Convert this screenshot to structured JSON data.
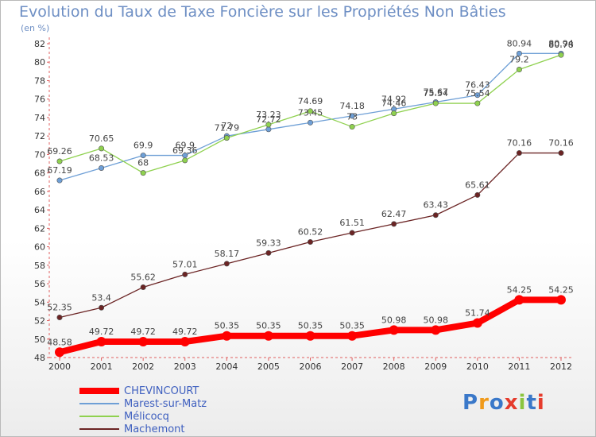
{
  "title": "Evolution du Taux de Taxe Foncière sur les Propriétés Non Bâties",
  "subtitle": "(en %)",
  "logo": {
    "text": "Proxiti",
    "colors": [
      "#3a78c9",
      "#f09a1a",
      "#3a78c9",
      "#e53b2c",
      "#8bc53f",
      "#3a78c9",
      "#e53b2c"
    ]
  },
  "chart_data": {
    "type": "line",
    "x": [
      "2000",
      "2001",
      "2002",
      "2003",
      "2004",
      "2005",
      "2006",
      "2007",
      "2008",
      "2009",
      "2010",
      "2011",
      "2012"
    ],
    "ylim": [
      48,
      82
    ],
    "yticks": [
      48,
      50,
      52,
      54,
      56,
      58,
      60,
      62,
      64,
      66,
      68,
      70,
      72,
      74,
      76,
      78,
      80,
      82
    ],
    "grid": false,
    "legend_position": "bottom-left",
    "series": [
      {
        "name": "CHEVINCOURT",
        "color": "#ff0000",
        "values": [
          48.58,
          49.72,
          49.72,
          49.72,
          50.35,
          50.35,
          50.35,
          50.35,
          50.98,
          50.98,
          51.74,
          54.25,
          54.25
        ],
        "labels": [
          "48.58",
          "49.72",
          "49.72",
          "49.72",
          "50.35",
          "50.35",
          "50.35",
          "50.35",
          "50.98",
          "50.98",
          "51.74",
          "54.25",
          "54.25"
        ]
      },
      {
        "name": "Marest-sur-Matz",
        "color": "#6e9fd6",
        "values": [
          67.19,
          68.53,
          69.9,
          69.9,
          72.0,
          72.72,
          73.45,
          74.18,
          74.92,
          75.67,
          76.43,
          80.94,
          80.94
        ],
        "labels": [
          "67.19",
          "68.53",
          "69.9",
          "69.9",
          "72",
          "72.72",
          "73.45",
          "74.18",
          "74.92",
          "75.67",
          "76.43",
          "80.94",
          "80.94"
        ]
      },
      {
        "name": "Mélicocq",
        "color": "#8fd14f",
        "values": [
          69.26,
          70.65,
          68.0,
          69.36,
          71.79,
          73.23,
          74.69,
          73.0,
          74.46,
          75.54,
          75.54,
          79.2,
          80.78
        ],
        "labels": [
          "69.26",
          "70.65",
          "68",
          "69.36",
          "71.79",
          "73.23",
          "74.69",
          "73",
          "74.46",
          "75.54",
          "75.54",
          "79.2",
          "80.78"
        ]
      },
      {
        "name": "Machemont",
        "color": "#6b2424",
        "values": [
          52.35,
          53.4,
          55.62,
          57.01,
          58.17,
          59.33,
          60.52,
          61.51,
          62.47,
          63.43,
          65.61,
          70.16,
          70.16
        ],
        "labels": [
          "52.35",
          "53.4",
          "55.62",
          "57.01",
          "58.17",
          "59.33",
          "60.52",
          "61.51",
          "62.47",
          "63.43",
          "65.61",
          "70.16",
          "70.16"
        ]
      }
    ]
  }
}
